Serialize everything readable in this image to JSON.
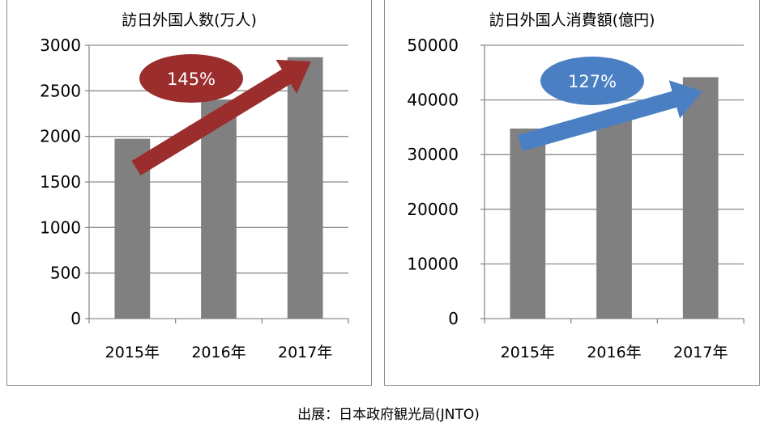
{
  "chart_data": [
    {
      "type": "bar",
      "title": "訪日外国人数(万人)",
      "categories": [
        "2015年",
        "2016年",
        "2017年"
      ],
      "values": [
        1974,
        2404,
        2869
      ],
      "ylim": [
        0,
        3000
      ],
      "yticks": [
        "0",
        "500",
        "1000",
        "1500",
        "2000",
        "2500",
        "3000"
      ],
      "xlabel": "",
      "ylabel": "",
      "grid": true,
      "bar_color": "#808080",
      "annotation": {
        "label": "145%",
        "ellipse_color": "#9b2d2d",
        "arrow_color": "#9b2d2d"
      }
    },
    {
      "type": "bar",
      "title": "訪日外国人消費額(億円)",
      "categories": [
        "2015年",
        "2016年",
        "2017年"
      ],
      "values": [
        34771,
        37476,
        44162
      ],
      "ylim": [
        0,
        50000
      ],
      "yticks": [
        "0",
        "10000",
        "20000",
        "30000",
        "40000",
        "50000"
      ],
      "xlabel": "",
      "ylabel": "",
      "grid": true,
      "bar_color": "#808080",
      "annotation": {
        "label": "127%",
        "ellipse_color": "#4a7fc4",
        "arrow_color": "#4a7fc4"
      }
    }
  ],
  "source": "出展：日本政府観光局(JNTO)"
}
